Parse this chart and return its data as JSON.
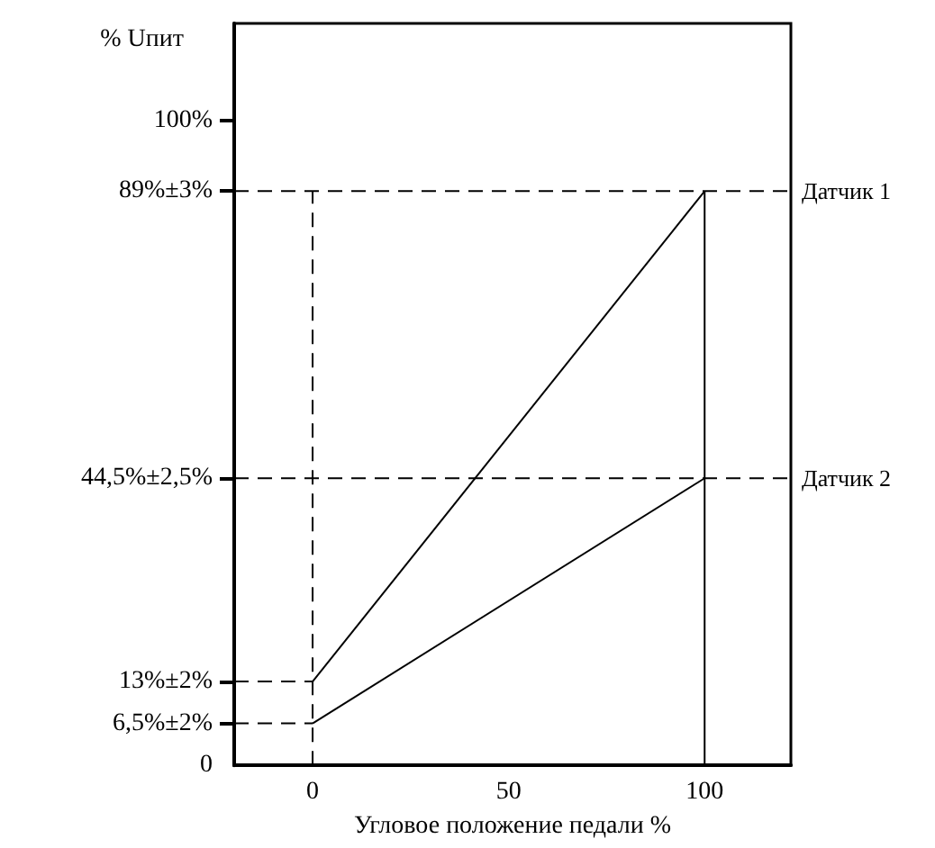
{
  "chart_data": {
    "type": "line",
    "xlabel": "Угловое положение педали %",
    "ylabel": "% Uпит",
    "xlim": [
      -20,
      122
    ],
    "xticks": [
      0,
      50,
      100
    ],
    "ylim": [
      0,
      115
    ],
    "yticks": [
      0,
      {
        "value": 6.5,
        "label": "6,5%±2%"
      },
      {
        "value": 13,
        "label": "13%±2%"
      },
      {
        "value": 44.5,
        "label": "44,5%±2,5%"
      },
      {
        "value": 89,
        "label": "89%±3%"
      },
      {
        "value": 100,
        "label": "100%"
      }
    ],
    "series": [
      {
        "color": "#000000",
        "x": [
          0,
          100
        ],
        "values": [
          13,
          89
        ]
      },
      {
        "color": "#000000",
        "x": [
          0,
          100
        ],
        "values": [
          6.5,
          44.5
        ]
      },
      {
        "color": "#000000",
        "x": [
          -20,
          0
        ],
        "values": [
          13,
          13
        ],
        "line_style": "dashed"
      },
      {
        "color": "#000000",
        "x": [
          -20,
          0
        ],
        "values": [
          6.5,
          6.5
        ],
        "line_style": "dashed"
      }
    ],
    "ref_lines": [
      {
        "axis": "y",
        "value": 89,
        "label": "Датчик 1",
        "line_style": "dashed",
        "color": "#000000"
      },
      {
        "axis": "y",
        "value": 44.5,
        "label": "Датчик 2",
        "line_style": "dashed",
        "color": "#000000"
      },
      {
        "axis": "x",
        "value": 0,
        "line_style": "dashed",
        "color": "#000000"
      },
      {
        "axis": "x",
        "value": 100,
        "line_style": "solid",
        "color": "#000000"
      }
    ],
    "grid": false,
    "marker": "none",
    "line_style": "solid"
  }
}
